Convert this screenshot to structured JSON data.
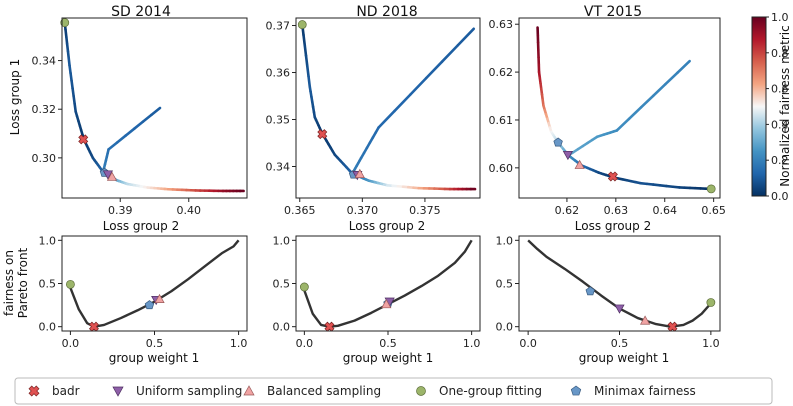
{
  "chart_data": {
    "type": "line",
    "colorbar": {
      "label": "Normalized fairness metric",
      "ticks": [
        "0.0",
        "0.2",
        "0.4",
        "0.6",
        "0.8",
        "1.0"
      ],
      "range": [
        0,
        1
      ],
      "colormap": [
        "#053061",
        "#2166ac",
        "#4393c3",
        "#92c5de",
        "#f7f7f7",
        "#f4a582",
        "#d6604d",
        "#b2182b",
        "#67001f"
      ]
    },
    "legend": {
      "placement": "bottom-center",
      "entries": [
        {
          "name": "badr",
          "marker": "x",
          "color": "#e05252"
        },
        {
          "name": "Uniform sampling",
          "marker": "triangle-down",
          "color": "#8e5fa8"
        },
        {
          "name": "Balanced sampling",
          "marker": "triangle-up",
          "color": "#f0a3a3"
        },
        {
          "name": "One-group fitting",
          "marker": "circle",
          "color": "#9cb56a"
        },
        {
          "name": "Minimax fairness",
          "marker": "pentagon",
          "color": "#6897c7"
        }
      ]
    },
    "top_panels": [
      {
        "title": "SD 2014",
        "xlabel": "Loss group 2",
        "ylabel": "Loss group 1",
        "xlim": [
          0.3815,
          0.4085
        ],
        "ylim": [
          0.2835,
          0.3575
        ],
        "xticks": [
          0.39,
          0.4
        ],
        "xtick_labels": [
          "0.39",
          "0.40"
        ],
        "yticks": [
          0.3,
          0.32,
          0.34
        ],
        "ytick_labels": [
          "0.30",
          "0.32",
          "0.34"
        ],
        "front": [
          {
            "x": 0.3819,
            "y": 0.3556,
            "c": 0.02
          },
          {
            "x": 0.3826,
            "y": 0.338,
            "c": 0.1
          },
          {
            "x": 0.3835,
            "y": 0.319,
            "c": 0.06
          },
          {
            "x": 0.3847,
            "y": 0.3075,
            "c": 0.02
          },
          {
            "x": 0.386,
            "y": 0.3,
            "c": 0.06
          },
          {
            "x": 0.3875,
            "y": 0.2942,
            "c": 0.12
          },
          {
            "x": 0.3885,
            "y": 0.2925,
            "c": 0.2
          },
          {
            "x": 0.3895,
            "y": 0.2908,
            "c": 0.3
          },
          {
            "x": 0.391,
            "y": 0.2893,
            "c": 0.42
          },
          {
            "x": 0.394,
            "y": 0.2878,
            "c": 0.52
          },
          {
            "x": 0.397,
            "y": 0.2871,
            "c": 0.62
          },
          {
            "x": 0.401,
            "y": 0.2866,
            "c": 0.78
          },
          {
            "x": 0.405,
            "y": 0.2864,
            "c": 0.92
          },
          {
            "x": 0.408,
            "y": 0.2864,
            "c": 1.0
          }
        ],
        "branch": [
          {
            "x": 0.3875,
            "y": 0.2942
          },
          {
            "x": 0.3883,
            "y": 0.3035
          },
          {
            "x": 0.3958,
            "y": 0.3205
          }
        ],
        "branch_c": [
          0.2,
          0.1
        ],
        "markers": [
          {
            "type": "badr",
            "x": 0.3846,
            "y": 0.3076
          },
          {
            "type": "minimax",
            "x": 0.3877,
            "y": 0.2939
          },
          {
            "type": "uniform",
            "x": 0.3882,
            "y": 0.2932
          },
          {
            "type": "balanced",
            "x": 0.3888,
            "y": 0.2922
          },
          {
            "type": "onegroup",
            "x": 0.3819,
            "y": 0.3556
          }
        ]
      },
      {
        "title": "ND 2018",
        "xlabel": "Loss group 2",
        "ylabel": "",
        "xlim": [
          0.3647,
          0.3794
        ],
        "ylim": [
          0.3333,
          0.3716
        ],
        "xticks": [
          0.365,
          0.37,
          0.375
        ],
        "xtick_labels": [
          "0.365",
          "0.370",
          "0.375"
        ],
        "yticks": [
          0.34,
          0.35,
          0.36,
          0.37
        ],
        "ytick_labels": [
          "0.34",
          "0.35",
          "0.36",
          "0.37"
        ],
        "front": [
          {
            "x": 0.3652,
            "y": 0.3702,
            "c": 0.02
          },
          {
            "x": 0.3658,
            "y": 0.357,
            "c": 0.1
          },
          {
            "x": 0.3662,
            "y": 0.3505,
            "c": 0.06
          },
          {
            "x": 0.3668,
            "y": 0.347,
            "c": 0.02
          },
          {
            "x": 0.3678,
            "y": 0.3425,
            "c": 0.05
          },
          {
            "x": 0.3692,
            "y": 0.3385,
            "c": 0.12
          },
          {
            "x": 0.3705,
            "y": 0.337,
            "c": 0.25
          },
          {
            "x": 0.372,
            "y": 0.336,
            "c": 0.45
          },
          {
            "x": 0.3745,
            "y": 0.3354,
            "c": 0.6
          },
          {
            "x": 0.377,
            "y": 0.3352,
            "c": 0.8
          },
          {
            "x": 0.379,
            "y": 0.3352,
            "c": 1.0
          }
        ],
        "branch": [
          {
            "x": 0.3692,
            "y": 0.3385
          },
          {
            "x": 0.3699,
            "y": 0.3418
          },
          {
            "x": 0.3713,
            "y": 0.3483
          },
          {
            "x": 0.3789,
            "y": 0.3693
          }
        ],
        "branch_c": [
          0.2,
          0.1
        ],
        "markers": [
          {
            "type": "badr",
            "x": 0.3668,
            "y": 0.3469
          },
          {
            "type": "minimax",
            "x": 0.3693,
            "y": 0.3383
          },
          {
            "type": "uniform",
            "x": 0.3696,
            "y": 0.3382
          },
          {
            "type": "balanced",
            "x": 0.3698,
            "y": 0.3384
          },
          {
            "type": "onegroup",
            "x": 0.3652,
            "y": 0.3702
          }
        ]
      },
      {
        "title": "VT 2015",
        "xlabel": "Loss group 2",
        "ylabel": "",
        "xlim": [
          0.6102,
          0.6513
        ],
        "ylim": [
          0.5937,
          0.6313
        ],
        "xticks": [
          0.62,
          0.63,
          0.64,
          0.65
        ],
        "xtick_labels": [
          "0.62",
          "0.63",
          "0.64",
          "0.65"
        ],
        "yticks": [
          0.6,
          0.61,
          0.62,
          0.63
        ],
        "ytick_labels": [
          "0.60",
          "0.61",
          "0.62",
          "0.63"
        ],
        "front": [
          {
            "x": 0.614,
            "y": 0.6293,
            "c": 1.0
          },
          {
            "x": 0.6143,
            "y": 0.62,
            "c": 0.9
          },
          {
            "x": 0.6152,
            "y": 0.613,
            "c": 0.72
          },
          {
            "x": 0.6168,
            "y": 0.6075,
            "c": 0.5
          },
          {
            "x": 0.6182,
            "y": 0.6053,
            "c": 0.42
          },
          {
            "x": 0.6203,
            "y": 0.6026,
            "c": 0.25
          },
          {
            "x": 0.623,
            "y": 0.6005,
            "c": 0.15
          },
          {
            "x": 0.6265,
            "y": 0.599,
            "c": 0.06
          },
          {
            "x": 0.6295,
            "y": 0.598,
            "c": 0.02
          },
          {
            "x": 0.635,
            "y": 0.5968,
            "c": 0.08
          },
          {
            "x": 0.643,
            "y": 0.5959,
            "c": 0.05
          },
          {
            "x": 0.6495,
            "y": 0.5956,
            "c": 0.0
          }
        ],
        "branch": [
          {
            "x": 0.6203,
            "y": 0.6026
          },
          {
            "x": 0.6262,
            "y": 0.6065
          },
          {
            "x": 0.6302,
            "y": 0.6078
          },
          {
            "x": 0.6451,
            "y": 0.6223
          }
        ],
        "branch_c": [
          0.3,
          0.2
        ],
        "markers": [
          {
            "type": "badr",
            "x": 0.6294,
            "y": 0.5982
          },
          {
            "type": "minimax",
            "x": 0.6182,
            "y": 0.6053
          },
          {
            "type": "uniform",
            "x": 0.6202,
            "y": 0.6027
          },
          {
            "type": "balanced",
            "x": 0.6226,
            "y": 0.6006
          },
          {
            "type": "onegroup",
            "x": 0.6495,
            "y": 0.5956
          }
        ]
      }
    ],
    "bottom_panels": [
      {
        "xlabel": "group weight 1",
        "ylabel": "fairness on\nPareto front",
        "xlim": [
          -0.05,
          1.05
        ],
        "ylim": [
          -0.05,
          1.05
        ],
        "xticks": [
          0.0,
          0.5,
          1.0
        ],
        "xtick_labels": [
          "0.0",
          "0.5",
          "1.0"
        ],
        "yticks": [
          0.0,
          0.5,
          1.0
        ],
        "ytick_labels": [
          "0.0",
          "0.5",
          "1.0"
        ],
        "curve": [
          {
            "x": 0.0,
            "y": 0.45
          },
          {
            "x": 0.05,
            "y": 0.2
          },
          {
            "x": 0.1,
            "y": 0.04
          },
          {
            "x": 0.14,
            "y": 0.0
          },
          {
            "x": 0.2,
            "y": 0.02
          },
          {
            "x": 0.3,
            "y": 0.1
          },
          {
            "x": 0.4,
            "y": 0.19
          },
          {
            "x": 0.5,
            "y": 0.29
          },
          {
            "x": 0.6,
            "y": 0.41
          },
          {
            "x": 0.7,
            "y": 0.55
          },
          {
            "x": 0.8,
            "y": 0.7
          },
          {
            "x": 0.9,
            "y": 0.85
          },
          {
            "x": 0.97,
            "y": 0.93
          },
          {
            "x": 1.0,
            "y": 1.0
          }
        ],
        "markers": [
          {
            "type": "badr",
            "x": 0.14,
            "y": 0.0
          },
          {
            "type": "minimax",
            "x": 0.47,
            "y": 0.25
          },
          {
            "type": "uniform",
            "x": 0.51,
            "y": 0.31
          },
          {
            "type": "balanced",
            "x": 0.53,
            "y": 0.32
          },
          {
            "type": "onegroup",
            "x": 0.0,
            "y": 0.49
          }
        ]
      },
      {
        "xlabel": "group weight 1",
        "ylabel": "",
        "xlim": [
          -0.05,
          1.05
        ],
        "ylim": [
          -0.05,
          1.05
        ],
        "xticks": [
          0.0,
          0.5,
          1.0
        ],
        "xtick_labels": [
          "0.0",
          "0.5",
          "1.0"
        ],
        "yticks": [
          0.0,
          0.5,
          1.0
        ],
        "ytick_labels": [
          "0.0",
          "0.5",
          "1.0"
        ],
        "curve": [
          {
            "x": 0.0,
            "y": 0.42
          },
          {
            "x": 0.05,
            "y": 0.15
          },
          {
            "x": 0.1,
            "y": 0.02
          },
          {
            "x": 0.15,
            "y": 0.0
          },
          {
            "x": 0.2,
            "y": 0.01
          },
          {
            "x": 0.3,
            "y": 0.07
          },
          {
            "x": 0.4,
            "y": 0.16
          },
          {
            "x": 0.5,
            "y": 0.26
          },
          {
            "x": 0.6,
            "y": 0.36
          },
          {
            "x": 0.7,
            "y": 0.47
          },
          {
            "x": 0.8,
            "y": 0.59
          },
          {
            "x": 0.9,
            "y": 0.74
          },
          {
            "x": 0.96,
            "y": 0.87
          },
          {
            "x": 1.0,
            "y": 1.0
          }
        ],
        "markers": [
          {
            "type": "badr",
            "x": 0.15,
            "y": 0.0
          },
          {
            "type": "minimax",
            "x": 0.5,
            "y": 0.27
          },
          {
            "type": "uniform",
            "x": 0.51,
            "y": 0.29
          },
          {
            "type": "balanced",
            "x": 0.49,
            "y": 0.26
          },
          {
            "type": "onegroup",
            "x": 0.0,
            "y": 0.46
          }
        ]
      },
      {
        "xlabel": "group weight 1",
        "ylabel": "",
        "xlim": [
          -0.05,
          1.05
        ],
        "ylim": [
          -0.05,
          1.05
        ],
        "xticks": [
          0.0,
          0.5,
          1.0
        ],
        "xtick_labels": [
          "0.0",
          "0.5",
          "1.0"
        ],
        "yticks": [
          0.0,
          0.5,
          1.0
        ],
        "ytick_labels": [
          "0.0",
          "0.5",
          "1.0"
        ],
        "curve": [
          {
            "x": 0.0,
            "y": 1.0
          },
          {
            "x": 0.05,
            "y": 0.9
          },
          {
            "x": 0.1,
            "y": 0.81
          },
          {
            "x": 0.2,
            "y": 0.67
          },
          {
            "x": 0.3,
            "y": 0.52
          },
          {
            "x": 0.4,
            "y": 0.36
          },
          {
            "x": 0.5,
            "y": 0.21
          },
          {
            "x": 0.6,
            "y": 0.1
          },
          {
            "x": 0.7,
            "y": 0.03
          },
          {
            "x": 0.78,
            "y": 0.0
          },
          {
            "x": 0.85,
            "y": 0.02
          },
          {
            "x": 0.9,
            "y": 0.07
          },
          {
            "x": 0.95,
            "y": 0.15
          },
          {
            "x": 1.0,
            "y": 0.27
          }
        ],
        "markers": [
          {
            "type": "badr",
            "x": 0.79,
            "y": 0.0
          },
          {
            "type": "minimax",
            "x": 0.34,
            "y": 0.41
          },
          {
            "type": "uniform",
            "x": 0.5,
            "y": 0.21
          },
          {
            "type": "balanced",
            "x": 0.64,
            "y": 0.07
          },
          {
            "type": "onegroup",
            "x": 1.0,
            "y": 0.28
          }
        ]
      }
    ]
  }
}
